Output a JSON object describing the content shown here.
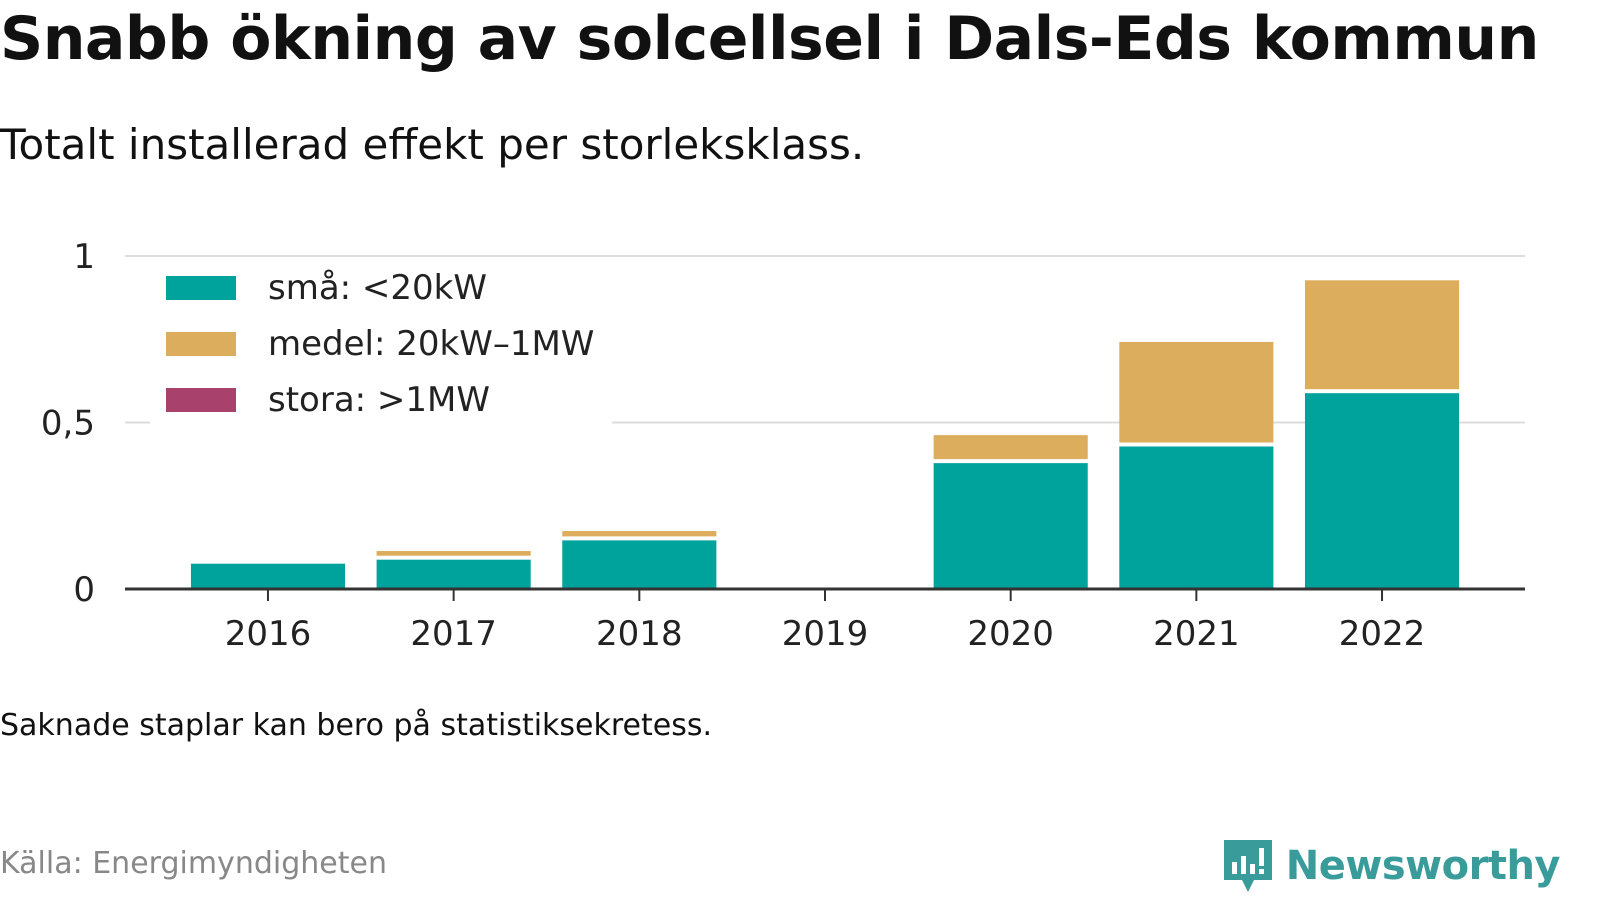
{
  "title": "Snabb ökning av solcellsel i Dals-Eds kommun",
  "subtitle": "Totalt installerad effekt per storleksklass.",
  "note": "Saknade staplar kan bero på statistiksekretess.",
  "source": "Källa: Energimyndigheten",
  "brand": {
    "name": "Newsworthy",
    "icon": "newsworthy-logo-icon",
    "color": "#3a9c9a"
  },
  "chart_data": {
    "type": "bar",
    "stacked": true,
    "categories": [
      "2016",
      "2017",
      "2018",
      "2019",
      "2020",
      "2021",
      "2022"
    ],
    "series": [
      {
        "name": "små: <20kW",
        "color": "#00a39b",
        "values": [
          0.076,
          0.088,
          0.146,
          0,
          0.378,
          0.428,
          0.588
        ]
      },
      {
        "name": "medel: 20kW–1MW",
        "color": "#dbad5c",
        "values": [
          0,
          0.026,
          0.028,
          0,
          0.084,
          0.314,
          0.339
        ]
      },
      {
        "name": "stora: >1MW",
        "color": "#a8416b",
        "values": [
          0,
          0,
          0,
          0,
          0,
          0,
          0
        ]
      }
    ],
    "ylim": [
      0,
      1
    ],
    "yticks": [
      0,
      0.5,
      1
    ],
    "ytick_labels": [
      "0",
      "0,5",
      "1"
    ],
    "grid": true,
    "legend_position": "top-left"
  }
}
